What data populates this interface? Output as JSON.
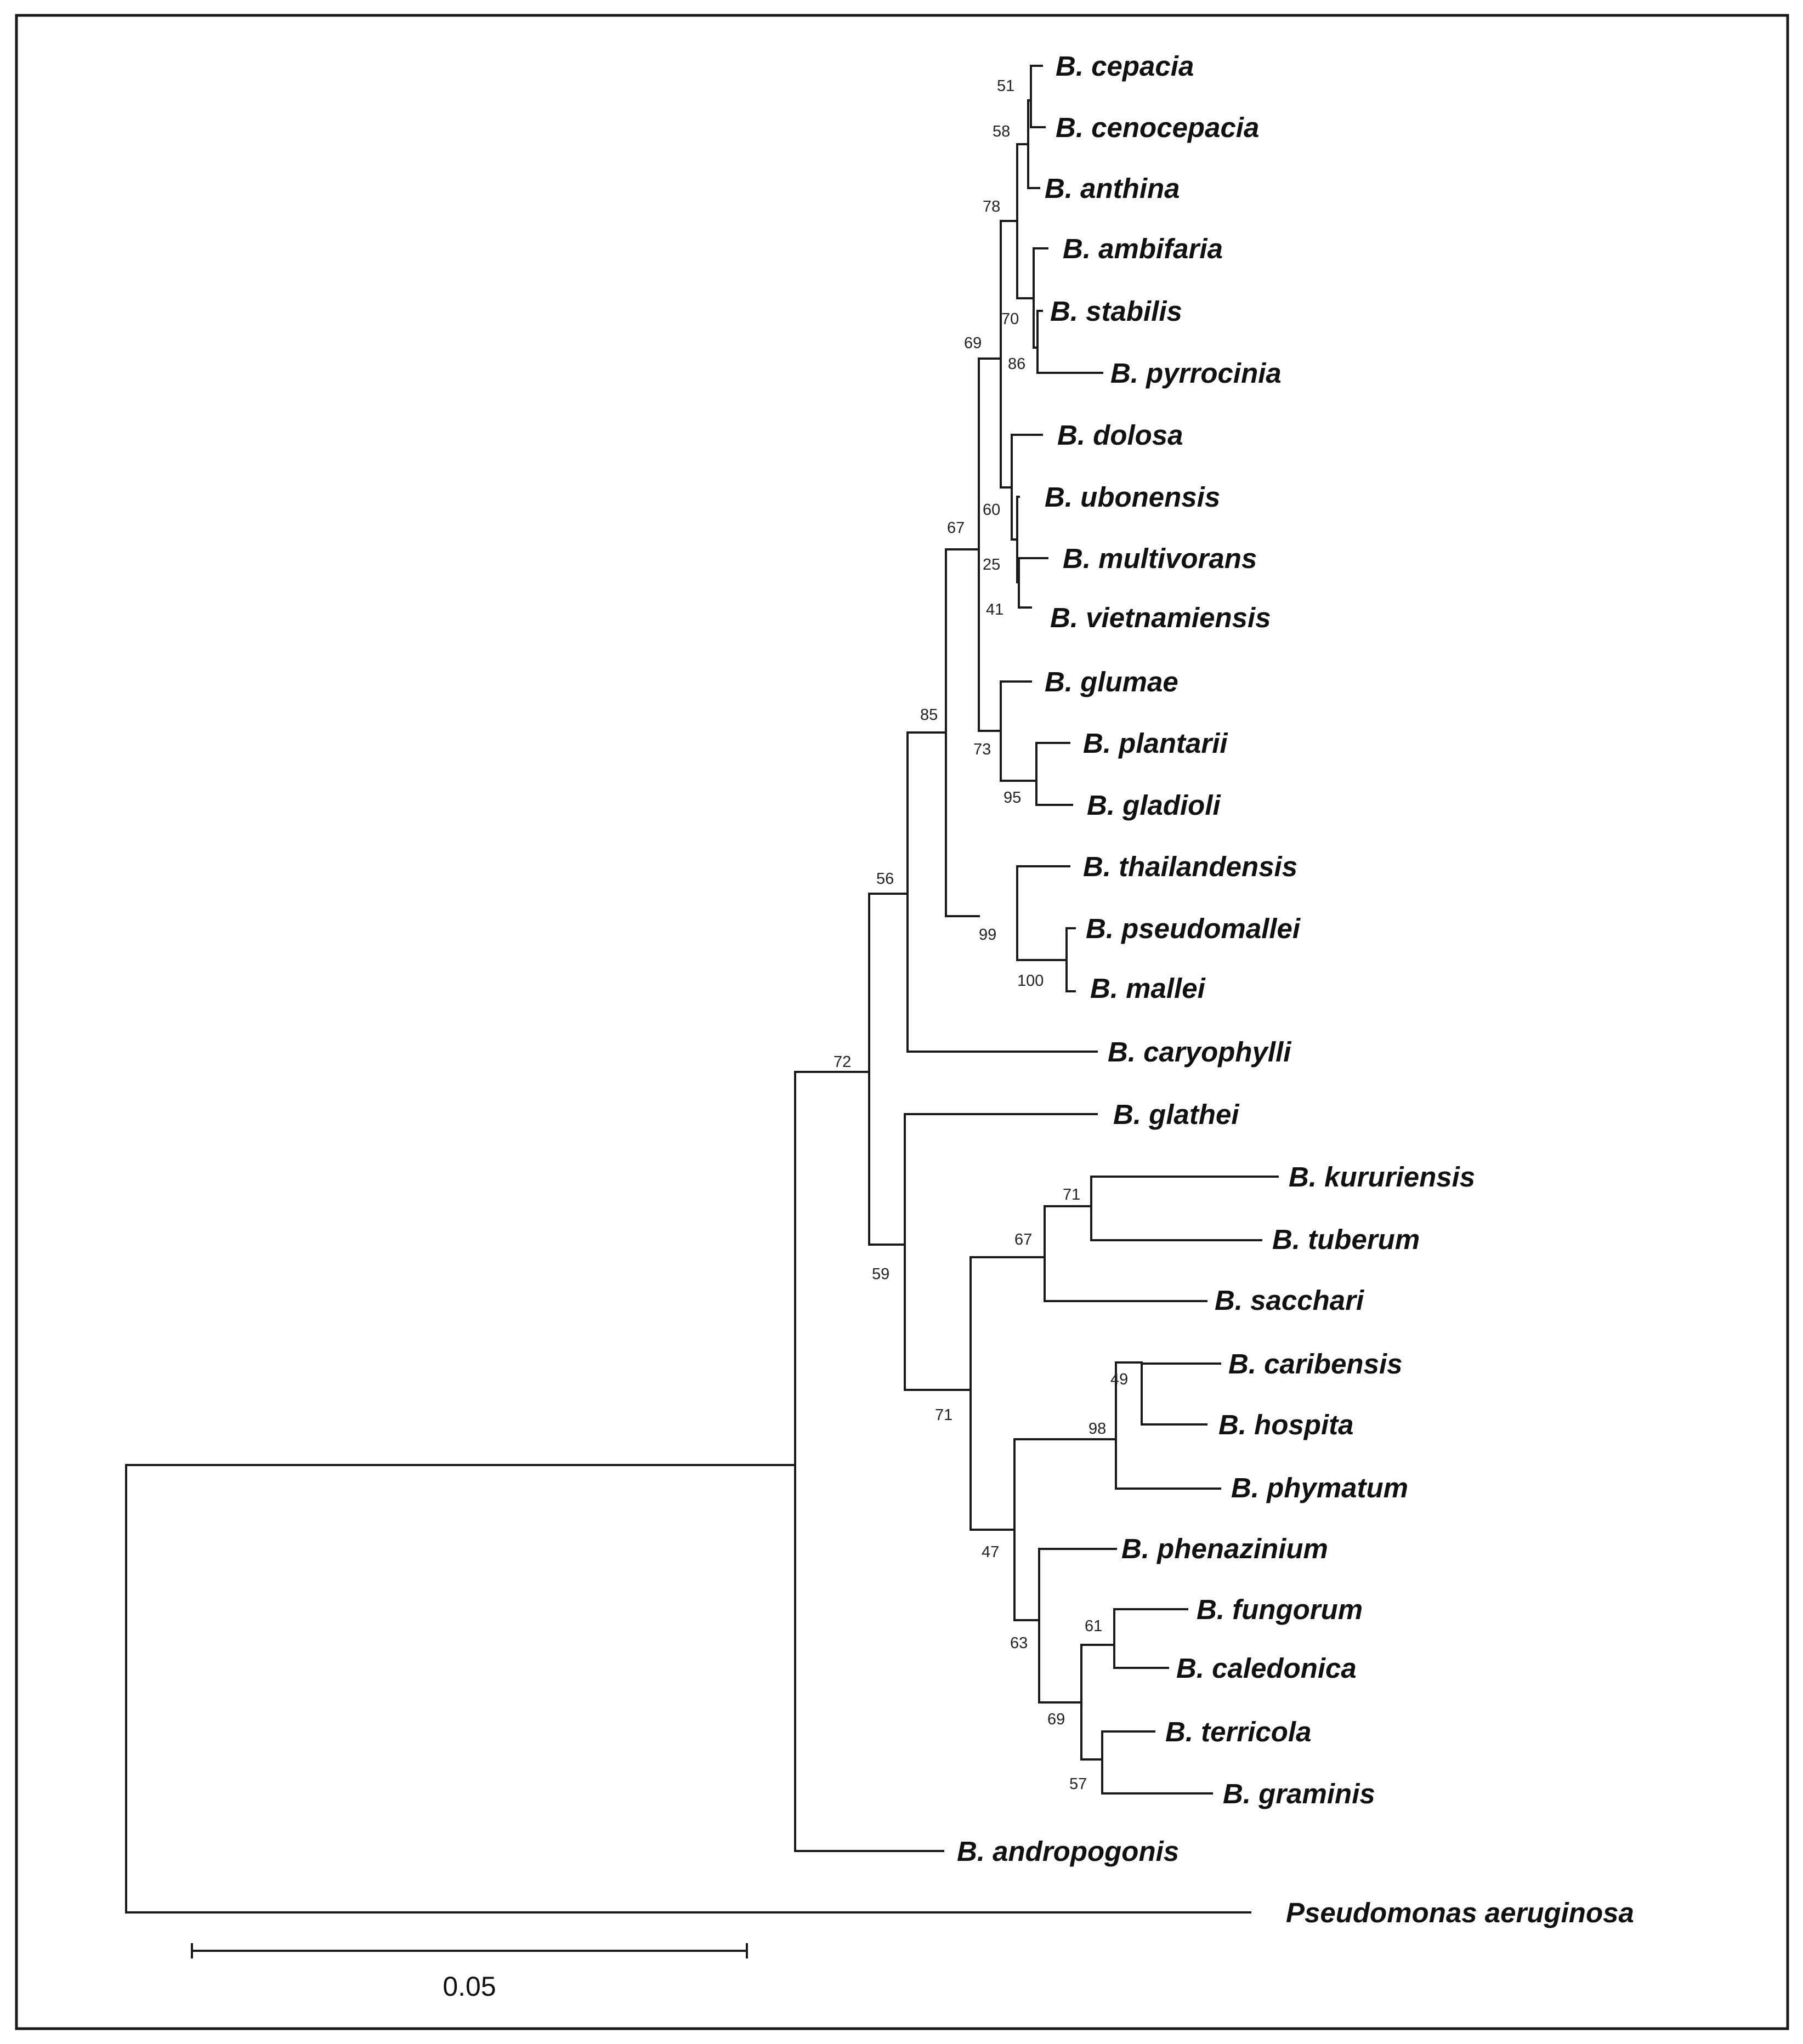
{
  "taxa": {
    "cepacia": "B. cepacia",
    "cenocepacia": "B. cenocepacia",
    "anthina": "B. anthina",
    "ambifaria": "B. ambifaria",
    "stabilis": "B. stabilis",
    "pyrrocinia": "B. pyrrocinia",
    "dolosa": "B. dolosa",
    "ubonensis": "B. ubonensis",
    "multivorans": "B. multivorans",
    "vietnamiensis": "B. vietnamiensis",
    "glumae": "B. glumae",
    "plantarii": "B. plantarii",
    "gladioli": "B. gladioli",
    "thailandensis": "B. thailandensis",
    "pseudomallei": "B. pseudomallei",
    "mallei": "B. mallei",
    "caryophylli": "B. caryophylli",
    "glathei": "B. glathei",
    "kururiensis": "B. kururiensis",
    "tuberum": "B. tuberum",
    "sacchari": "B. sacchari",
    "caribensis": "B. caribensis",
    "hospita": "B. hospita",
    "phymatum": "B. phymatum",
    "phenazinium": "B. phenazinium",
    "fungorum": "B. fungorum",
    "caledonica": "B. caledonica",
    "terricola": "B. terricola",
    "graminis": "B. graminis",
    "andropogonis": "B. andropogonis",
    "aeruginosa": "Pseudomonas aeruginosa"
  },
  "bootstrap": {
    "n51": "51",
    "n58": "58",
    "n78": "78",
    "n70": "70",
    "n86": "86",
    "n69": "69",
    "n60": "60",
    "n25": "25",
    "n41": "41",
    "n67a": "67",
    "n73": "73",
    "n95": "95",
    "n85": "85",
    "n56": "56",
    "n99": "99",
    "n100": "100",
    "n72": "72",
    "n59": "59",
    "n71a": "71",
    "n67b": "67",
    "n71b": "71",
    "n49": "49",
    "n98": "98",
    "n47": "47",
    "n63": "63",
    "n61": "61",
    "n69b": "69",
    "n57": "57"
  },
  "scale_bar": {
    "label": "0.05",
    "value": 0.05
  }
}
